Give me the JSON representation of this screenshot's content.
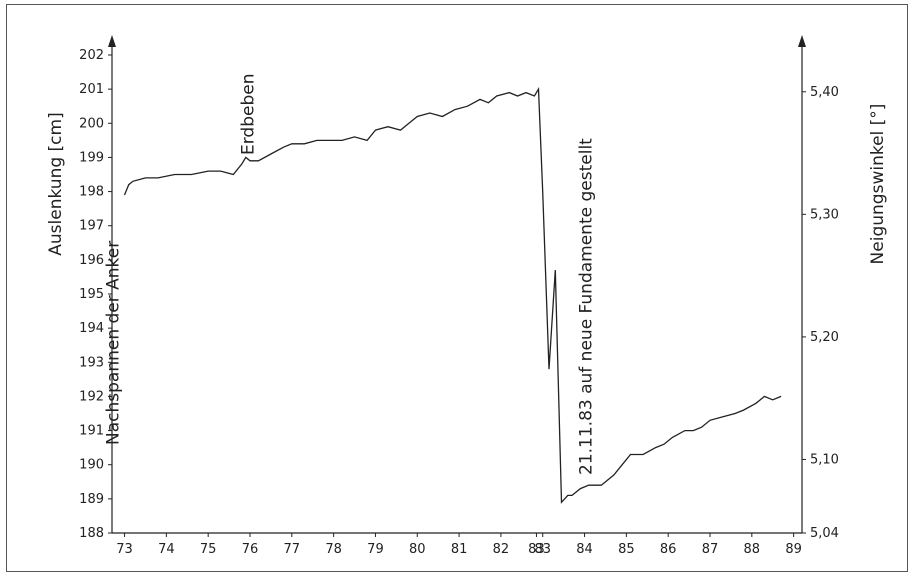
{
  "chart_data": {
    "type": "line",
    "title": "",
    "ylabel": "Auslenkung [cm]",
    "y2label": "Neigungswinkel [°]",
    "xlabel": "",
    "xlim": [
      72.7,
      89.2
    ],
    "ylim": [
      188,
      202
    ],
    "y2lim": [
      5.04,
      5.43
    ],
    "x_ticks": [
      "73",
      "74",
      "75",
      "76",
      "77",
      "78",
      "79",
      "80",
      "81",
      "82",
      "83",
      "83",
      "84",
      "85",
      "86",
      "87",
      "88",
      "89"
    ],
    "x_tick_values": [
      73,
      74,
      75,
      76,
      77,
      78,
      79,
      80,
      81,
      82,
      82.85,
      83,
      84,
      85,
      86,
      87,
      88,
      89
    ],
    "y_ticks": [
      "188",
      "189",
      "190",
      "191",
      "192",
      "193",
      "194",
      "195",
      "196",
      "197",
      "198",
      "199",
      "200",
      "201",
      "202"
    ],
    "y_tick_values": [
      188,
      189,
      190,
      191,
      192,
      193,
      194,
      195,
      196,
      197,
      198,
      199,
      200,
      201,
      202
    ],
    "y2_ticks": [
      "5,04",
      "5,10",
      "5,20",
      "5,30",
      "5,40"
    ],
    "y2_tick_values": [
      5.04,
      5.1,
      5.2,
      5.3,
      5.4
    ],
    "grid": false,
    "annotations": [
      {
        "label": "Nachspannen der Anker",
        "x": 73.0
      },
      {
        "label": "Erdbeben",
        "x": 75.8
      },
      {
        "label": "21.11.83 auf neue Fundamente gestellt",
        "x": 83.5
      }
    ],
    "series": [
      {
        "x": [
          73.0,
          73.1,
          73.2,
          73.5,
          73.8,
          74.2,
          74.6,
          75.0,
          75.3,
          75.6,
          75.8,
          75.9,
          76.0,
          76.2,
          76.5,
          76.8,
          77.0,
          77.3,
          77.6,
          77.9,
          78.2,
          78.5,
          78.8,
          79.0,
          79.3,
          79.6,
          79.8,
          80.0,
          80.3,
          80.6,
          80.9,
          81.2,
          81.5,
          81.7,
          81.9,
          82.2,
          82.4,
          82.6,
          82.8,
          82.9,
          83.0,
          83.15,
          83.3,
          83.45,
          83.6,
          83.7,
          83.9,
          84.1,
          84.4,
          84.7,
          84.9,
          85.1,
          85.4,
          85.7,
          85.9,
          86.1,
          86.4,
          86.6,
          86.8,
          87.0,
          87.3,
          87.6,
          87.8,
          88.1,
          88.3,
          88.5,
          88.7
        ],
        "values": [
          197.9,
          198.2,
          198.3,
          198.4,
          198.4,
          198.5,
          198.5,
          198.6,
          198.6,
          198.5,
          198.8,
          199.0,
          198.9,
          198.9,
          199.1,
          199.3,
          199.4,
          199.4,
          199.5,
          199.5,
          199.5,
          199.6,
          199.5,
          199.8,
          199.9,
          199.8,
          200.0,
          200.2,
          200.3,
          200.2,
          200.4,
          200.5,
          200.7,
          200.6,
          200.8,
          200.9,
          200.8,
          200.9,
          200.8,
          201.0,
          198.0,
          192.8,
          195.7,
          188.9,
          189.1,
          189.1,
          189.3,
          189.4,
          189.4,
          189.7,
          190.0,
          190.3,
          190.3,
          190.5,
          190.6,
          190.8,
          191.0,
          191.0,
          191.1,
          191.3,
          191.4,
          191.5,
          191.6,
          191.8,
          192.0,
          191.9,
          192.0
        ]
      }
    ]
  }
}
